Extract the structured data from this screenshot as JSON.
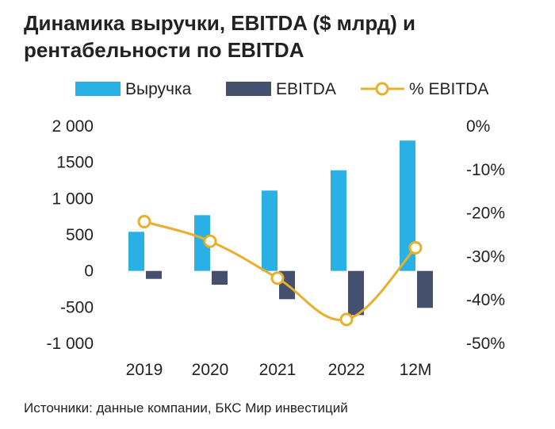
{
  "title_line1": "Динамика выручки, EBITDA ($ млрд) и",
  "title_line2": "рентабельности по EBITDA",
  "source": "Источники: данные компании, БКС Мир инвестиций",
  "colors": {
    "revenue": "#29b1e6",
    "ebitda": "#45506e",
    "margin": "#e8b02a"
  },
  "chart_data": {
    "type": "bar",
    "categories": [
      "2019",
      "2020",
      "2021",
      "2022",
      "12M"
    ],
    "series": [
      {
        "name": "Выручка",
        "type": "bar",
        "axis": "left",
        "values": [
          540,
          770,
          1110,
          1390,
          1800
        ]
      },
      {
        "name": "EBITDA",
        "type": "bar",
        "axis": "left",
        "values": [
          -110,
          -190,
          -390,
          -610,
          -510
        ]
      },
      {
        "name": "% EBITDA",
        "type": "line",
        "axis": "right",
        "values": [
          -22,
          -26.5,
          -35,
          -44.5,
          -28
        ]
      }
    ],
    "y_left": {
      "range": [
        -1000,
        2000
      ],
      "ticks": [
        2000,
        1500,
        1000,
        500,
        0,
        -500,
        -1000
      ],
      "tick_labels": [
        "2 000",
        "1500",
        "1 000",
        "500",
        "0",
        "-500",
        "-1 000"
      ]
    },
    "y_right": {
      "range": [
        -50,
        0
      ],
      "ticks": [
        0,
        -10,
        -20,
        -30,
        -40,
        -50
      ],
      "tick_labels": [
        "0%",
        "-10%",
        "-20%",
        "-30%",
        "-40%",
        "-50%"
      ]
    },
    "legend": [
      "Выручка",
      "EBITDA",
      "% EBITDA"
    ],
    "legend_position": "top",
    "grid": false
  }
}
